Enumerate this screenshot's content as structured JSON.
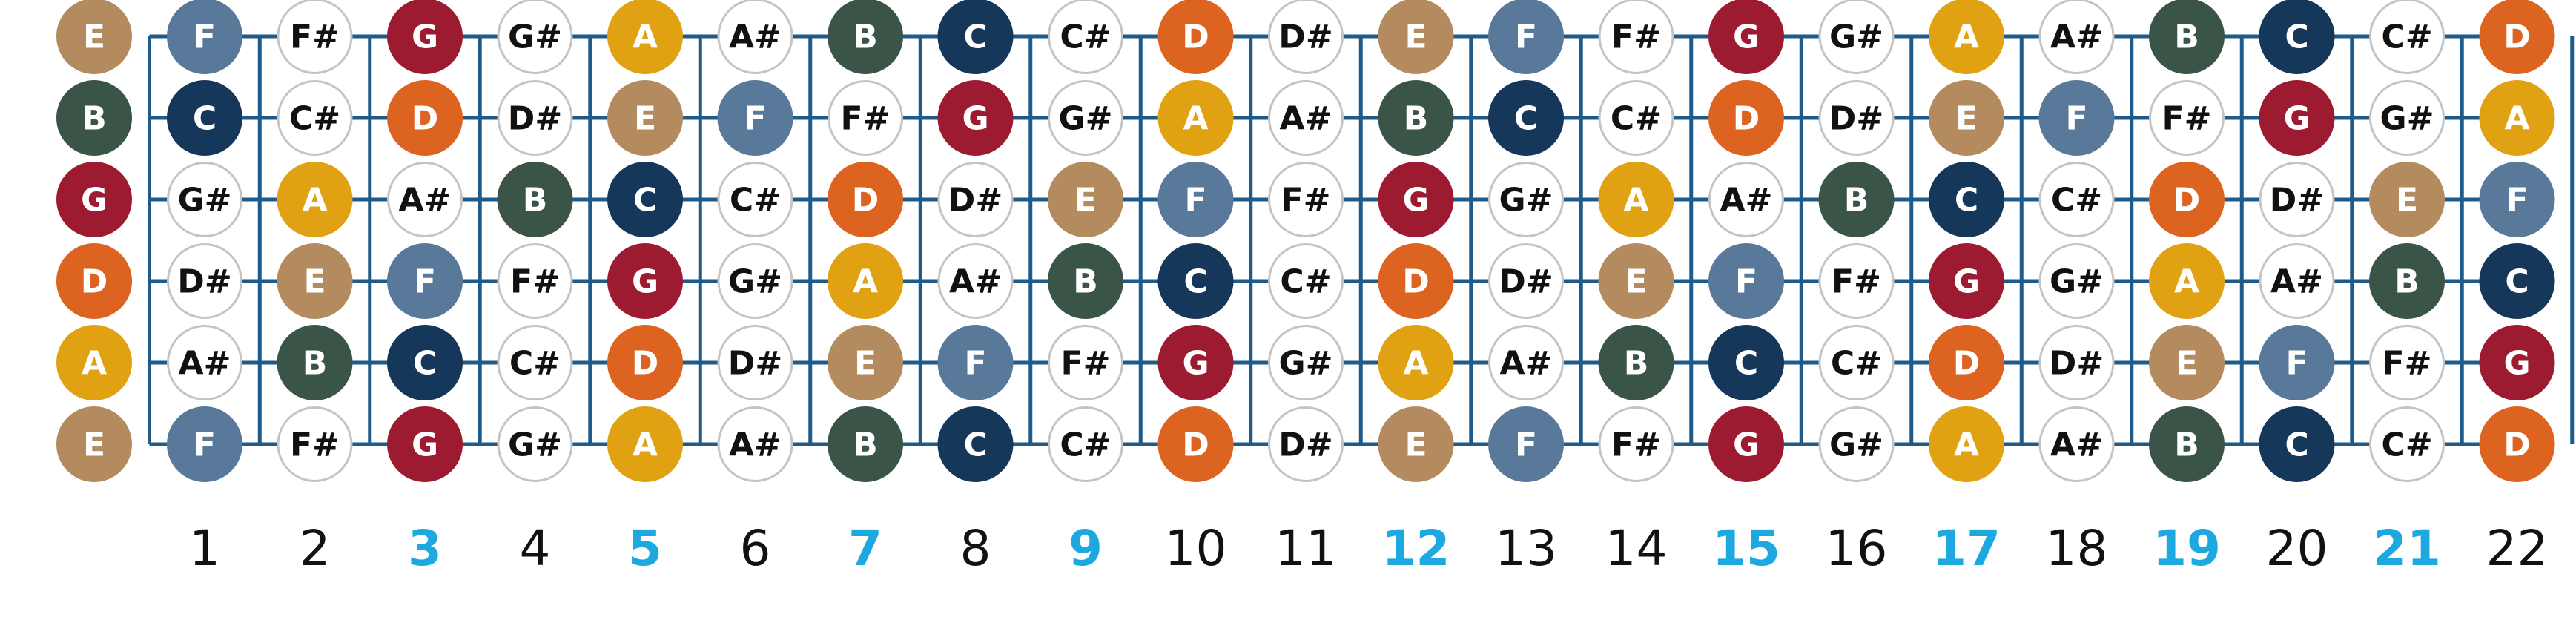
{
  "fretboard": {
    "strings": [
      {
        "notes": [
          "E",
          "F",
          "F#",
          "G",
          "G#",
          "A",
          "A#",
          "B",
          "C",
          "C#",
          "D",
          "D#",
          "E",
          "F",
          "F#",
          "G",
          "G#",
          "A",
          "A#",
          "B",
          "C",
          "C#",
          "D"
        ]
      },
      {
        "notes": [
          "B",
          "C",
          "C#",
          "D",
          "D#",
          "E",
          "F",
          "F#",
          "G",
          "G#",
          "A",
          "A#",
          "B",
          "C",
          "C#",
          "D",
          "D#",
          "E",
          "F",
          "F#",
          "G",
          "G#",
          "A"
        ]
      },
      {
        "notes": [
          "G",
          "G#",
          "A",
          "A#",
          "B",
          "C",
          "C#",
          "D",
          "D#",
          "E",
          "F",
          "F#",
          "G",
          "G#",
          "A",
          "A#",
          "B",
          "C",
          "C#",
          "D",
          "D#",
          "E",
          "F"
        ]
      },
      {
        "notes": [
          "D",
          "D#",
          "E",
          "F",
          "F#",
          "G",
          "G#",
          "A",
          "A#",
          "B",
          "C",
          "C#",
          "D",
          "D#",
          "E",
          "F",
          "F#",
          "G",
          "G#",
          "A",
          "A#",
          "B",
          "C"
        ]
      },
      {
        "notes": [
          "A",
          "A#",
          "B",
          "C",
          "C#",
          "D",
          "D#",
          "E",
          "F",
          "F#",
          "G",
          "G#",
          "A",
          "A#",
          "B",
          "C",
          "C#",
          "D",
          "D#",
          "E",
          "F",
          "F#",
          "G"
        ]
      },
      {
        "notes": [
          "E",
          "F",
          "F#",
          "G",
          "G#",
          "A",
          "A#",
          "B",
          "C",
          "C#",
          "D",
          "D#",
          "E",
          "F",
          "F#",
          "G",
          "G#",
          "A",
          "A#",
          "B",
          "C",
          "C#",
          "D"
        ]
      }
    ],
    "fret_numbers": [
      "1",
      "2",
      "3",
      "4",
      "5",
      "6",
      "7",
      "8",
      "9",
      "10",
      "11",
      "12",
      "13",
      "14",
      "15",
      "16",
      "17",
      "18",
      "19",
      "20",
      "21",
      "22"
    ],
    "marker_frets": [
      3,
      5,
      7,
      9,
      12,
      15,
      17,
      19,
      21
    ],
    "note_colors": {
      "E": "#b38b5e",
      "F": "#58799a",
      "G": "#9c1b30",
      "A": "#e0a212",
      "B": "#3a5547",
      "C": "#15375a",
      "D": "#dd6321"
    },
    "sharp_fill": "#ffffff",
    "sharp_stroke": "#c4c4c4",
    "natural_text_color": "#ffffff",
    "sharp_text_color": "#111111",
    "line_color": "#1e5b8a",
    "fret_number_color": "#111111",
    "marker_number_color": "#1ea8e0"
  }
}
